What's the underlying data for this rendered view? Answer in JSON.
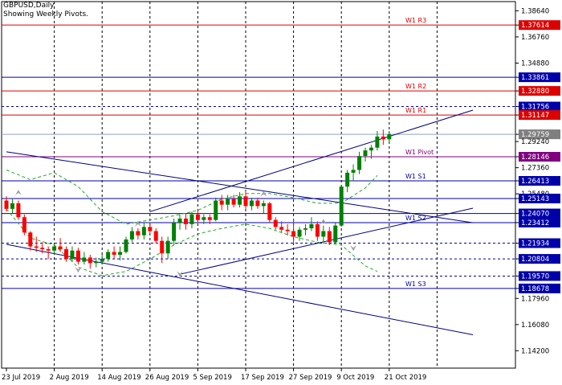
{
  "header": {
    "symbol_line": "GBPUSD,Daily",
    "subtitle": "Showing Weekly Pivots."
  },
  "colors": {
    "background": "#ffffff",
    "frame": "#000000",
    "bull": "#008000",
    "bear": "#ff0000",
    "resistance": "#dd0000",
    "support": "#0000aa",
    "pivot": "#800080",
    "trendline": "#000080",
    "envelope": "#22aa22",
    "grid": "#000000",
    "price_tag": "#7f7f7f"
  },
  "chart_data": {
    "type": "candlestick",
    "symbol": "GBPUSD",
    "timeframe": "Daily",
    "ylim": [
      1.1295,
      1.393
    ],
    "y_ticks": [
      "1.38640",
      "1.37614",
      "1.36760",
      "1.34880",
      "1.33861",
      "1.32880",
      "1.31756",
      "1.31147",
      "1.29759",
      "1.29240",
      "1.28146",
      "1.27360",
      "1.26413",
      "1.25480",
      "1.25143",
      "1.24070",
      "1.23412",
      "1.21934",
      "1.20804",
      "1.19570",
      "1.18678",
      "1.17960",
      "1.16080",
      "1.14200"
    ],
    "x_ticks": [
      {
        "label": "23 Jul 2019",
        "index": 0
      },
      {
        "label": "2 Aug 2019",
        "index": 8
      },
      {
        "label": "14 Aug 2019",
        "index": 16
      },
      {
        "label": "26 Aug 2019",
        "index": 24
      },
      {
        "label": "5 Sep 2019",
        "index": 32
      },
      {
        "label": "17 Sep 2019",
        "index": 40
      },
      {
        "label": "27 Sep 2019",
        "index": 48
      },
      {
        "label": "9 Oct 2019",
        "index": 56
      },
      {
        "label": "21 Oct 2019",
        "index": 64
      }
    ],
    "levels": [
      {
        "name": "W1 R3",
        "value": 1.37614,
        "role": "resistance",
        "tag": "1.37614"
      },
      {
        "name": "",
        "value": 1.33861,
        "role": "support",
        "tag": "1.33861"
      },
      {
        "name": "W1 R2",
        "value": 1.3288,
        "role": "resistance",
        "tag": "1.32880"
      },
      {
        "name": "",
        "value": 1.31756,
        "role": "support_dashed",
        "tag": "1.31756"
      },
      {
        "name": "W1 R1",
        "value": 1.31147,
        "role": "resistance",
        "tag": "1.31147"
      },
      {
        "name": "",
        "value": 1.29759,
        "role": "price",
        "tag": "1.29759"
      },
      {
        "name": "W1 Pivot",
        "value": 1.28146,
        "role": "pivot",
        "tag": "1.28146"
      },
      {
        "name": "W1 S1",
        "value": 1.26413,
        "role": "support",
        "tag": "1.26413"
      },
      {
        "name": "",
        "value": 1.25143,
        "role": "support",
        "tag": "1.25143"
      },
      {
        "name": "",
        "value": 1.2407,
        "role": "support",
        "tag": "1.24070"
      },
      {
        "name": "W1 S2",
        "value": 1.23412,
        "role": "support",
        "tag": "1.23412"
      },
      {
        "name": "",
        "value": 1.21934,
        "role": "support_dashed",
        "tag": "1.21934"
      },
      {
        "name": "",
        "value": 1.20804,
        "role": "support_dashed",
        "tag": "1.20804"
      },
      {
        "name": "",
        "value": 1.1957,
        "role": "support_dashed",
        "tag": "1.19570"
      },
      {
        "name": "W1 S3",
        "value": 1.18678,
        "role": "support",
        "tag": "1.18678"
      }
    ],
    "candles": [
      [
        1.25,
        1.253,
        1.242,
        1.244
      ],
      [
        1.244,
        1.251,
        1.241,
        1.248
      ],
      [
        1.248,
        1.25,
        1.236,
        1.238
      ],
      [
        1.238,
        1.24,
        1.225,
        1.227
      ],
      [
        1.227,
        1.228,
        1.214,
        1.217
      ],
      [
        1.217,
        1.224,
        1.213,
        1.216
      ],
      [
        1.216,
        1.22,
        1.212,
        1.215
      ],
      [
        1.215,
        1.217,
        1.208,
        1.214
      ],
      [
        1.214,
        1.219,
        1.211,
        1.217
      ],
      [
        1.217,
        1.223,
        1.213,
        1.215
      ],
      [
        1.215,
        1.217,
        1.206,
        1.208
      ],
      [
        1.208,
        1.217,
        1.206,
        1.214
      ],
      [
        1.214,
        1.216,
        1.204,
        1.206
      ],
      [
        1.206,
        1.213,
        1.204,
        1.209
      ],
      [
        1.209,
        1.211,
        1.201,
        1.205
      ],
      [
        1.205,
        1.209,
        1.202,
        1.206
      ],
      [
        1.206,
        1.211,
        1.204,
        1.208
      ],
      [
        1.208,
        1.215,
        1.206,
        1.213
      ],
      [
        1.213,
        1.217,
        1.208,
        1.211
      ],
      [
        1.211,
        1.217,
        1.207,
        1.213
      ],
      [
        1.213,
        1.224,
        1.212,
        1.222
      ],
      [
        1.222,
        1.231,
        1.22,
        1.228
      ],
      [
        1.228,
        1.23,
        1.222,
        1.225
      ],
      [
        1.225,
        1.234,
        1.222,
        1.231
      ],
      [
        1.231,
        1.234,
        1.226,
        1.228
      ],
      [
        1.228,
        1.23,
        1.219,
        1.221
      ],
      [
        1.221,
        1.224,
        1.205,
        1.212
      ],
      [
        1.212,
        1.224,
        1.208,
        1.221
      ],
      [
        1.221,
        1.237,
        1.218,
        1.234
      ],
      [
        1.234,
        1.24,
        1.229,
        1.237
      ],
      [
        1.237,
        1.241,
        1.229,
        1.233
      ],
      [
        1.233,
        1.242,
        1.23,
        1.24
      ],
      [
        1.24,
        1.244,
        1.234,
        1.236
      ],
      [
        1.236,
        1.24,
        1.233,
        1.238
      ],
      [
        1.238,
        1.24,
        1.233,
        1.236
      ],
      [
        1.236,
        1.252,
        1.235,
        1.25
      ],
      [
        1.25,
        1.254,
        1.243,
        1.247
      ],
      [
        1.247,
        1.254,
        1.243,
        1.251
      ],
      [
        1.251,
        1.254,
        1.245,
        1.247
      ],
      [
        1.247,
        1.256,
        1.245,
        1.253
      ],
      [
        1.253,
        1.257,
        1.244,
        1.246
      ],
      [
        1.246,
        1.252,
        1.243,
        1.25
      ],
      [
        1.25,
        1.252,
        1.244,
        1.246
      ],
      [
        1.246,
        1.25,
        1.241,
        1.248
      ],
      [
        1.248,
        1.249,
        1.234,
        1.236
      ],
      [
        1.236,
        1.238,
        1.229,
        1.231
      ],
      [
        1.231,
        1.235,
        1.227,
        1.229
      ],
      [
        1.229,
        1.233,
        1.225,
        1.228
      ],
      [
        1.228,
        1.237,
        1.219,
        1.224
      ],
      [
        1.224,
        1.231,
        1.221,
        1.229
      ],
      [
        1.229,
        1.233,
        1.225,
        1.23
      ],
      [
        1.23,
        1.238,
        1.228,
        1.233
      ],
      [
        1.233,
        1.235,
        1.221,
        1.224
      ],
      [
        1.224,
        1.232,
        1.22,
        1.228
      ],
      [
        1.228,
        1.231,
        1.218,
        1.22
      ],
      [
        1.22,
        1.234,
        1.219,
        1.232
      ],
      [
        1.232,
        1.261,
        1.231,
        1.26
      ],
      [
        1.26,
        1.272,
        1.256,
        1.27
      ],
      [
        1.27,
        1.276,
        1.264,
        1.272
      ],
      [
        1.272,
        1.285,
        1.269,
        1.282
      ],
      [
        1.282,
        1.288,
        1.278,
        1.286
      ],
      [
        1.286,
        1.29,
        1.28,
        1.288
      ],
      [
        1.288,
        1.3,
        1.286,
        1.296
      ],
      [
        1.296,
        1.301,
        1.29,
        1.294
      ],
      [
        1.294,
        1.3,
        1.291,
        1.2976
      ]
    ],
    "trendlines": [
      {
        "name": "upper-channel-rising",
        "from": [
          24,
          1.242
        ],
        "to": [
          78,
          1.315
        ]
      },
      {
        "name": "lower-channel-rising",
        "from": [
          29,
          1.197
        ],
        "to": [
          78,
          1.2445
        ]
      },
      {
        "name": "upper-channel-falling",
        "from": [
          0,
          1.285
        ],
        "to": [
          78,
          1.234
        ]
      },
      {
        "name": "lower-channel-falling",
        "from": [
          0,
          1.2185
        ],
        "to": [
          78,
          1.1535
        ]
      }
    ],
    "envelope_upper": [
      [
        0,
        1.272
      ],
      [
        4,
        1.265
      ],
      [
        8,
        1.27
      ],
      [
        12,
        1.26
      ],
      [
        16,
        1.242
      ],
      [
        20,
        1.233
      ],
      [
        24,
        1.236
      ],
      [
        28,
        1.239
      ],
      [
        32,
        1.243
      ],
      [
        36,
        1.251
      ],
      [
        40,
        1.255
      ],
      [
        44,
        1.255
      ],
      [
        48,
        1.252
      ],
      [
        52,
        1.248
      ],
      [
        56,
        1.248
      ],
      [
        60,
        1.259
      ],
      [
        62,
        1.268
      ]
    ],
    "envelope_lower": [
      [
        0,
        1.244
      ],
      [
        4,
        1.223
      ],
      [
        8,
        1.218
      ],
      [
        12,
        1.202
      ],
      [
        16,
        1.196
      ],
      [
        20,
        1.199
      ],
      [
        24,
        1.208
      ],
      [
        28,
        1.218
      ],
      [
        32,
        1.226
      ],
      [
        36,
        1.23
      ],
      [
        40,
        1.233
      ],
      [
        44,
        1.23
      ],
      [
        48,
        1.224
      ],
      [
        52,
        1.22
      ],
      [
        56,
        1.218
      ],
      [
        60,
        1.203
      ],
      [
        62,
        1.199
      ]
    ],
    "fractals": [
      {
        "index": 2,
        "value": 1.2555,
        "dir": "up"
      },
      {
        "index": 12,
        "value": 1.2005,
        "dir": "down"
      },
      {
        "index": 22,
        "value": 1.233,
        "dir": "up"
      },
      {
        "index": 29,
        "value": 1.1975,
        "dir": "down"
      },
      {
        "index": 43,
        "value": 1.2545,
        "dir": "up"
      },
      {
        "index": 53,
        "value": 1.2345,
        "dir": "up"
      },
      {
        "index": 58,
        "value": 1.216,
        "dir": "down"
      }
    ]
  }
}
